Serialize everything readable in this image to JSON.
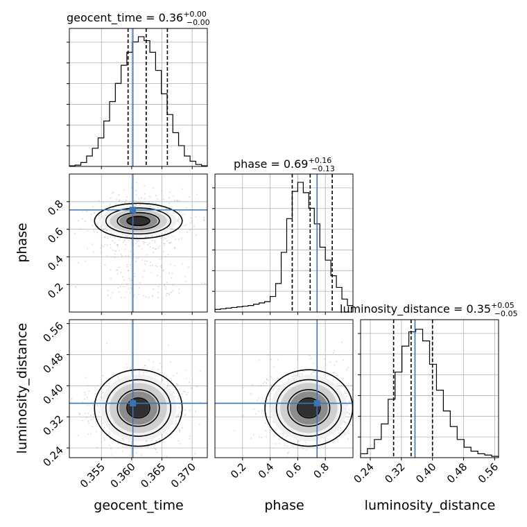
{
  "chart_data": {
    "type": "corner",
    "parameters": [
      "geocent_time",
      "phase",
      "luminosity_distance"
    ],
    "truth": {
      "geocent_time": 0.3602,
      "phase": 0.74,
      "luminosity_distance": 0.355
    },
    "colors": {
      "truth": "#3a74b3",
      "hist": "#000000",
      "points": "#9a9a9a"
    },
    "grid": true,
    "diagonal": [
      {
        "parameter": "geocent_time",
        "title_main": "geocent_time = 0.36",
        "title_sup": "+0.00",
        "title_sub": "−0.00",
        "xlim": [
          0.3497,
          0.3725
        ],
        "xticks": [
          0.355,
          0.36,
          0.365,
          0.37
        ],
        "xticklabels": [
          "0.355",
          "0.360",
          "0.365",
          "0.370"
        ],
        "quantiles": [
          0.3594,
          0.3624,
          0.3659
        ],
        "hist": [
          0.005,
          0.01,
          0.03,
          0.08,
          0.14,
          0.22,
          0.35,
          0.5,
          0.64,
          0.78,
          0.88,
          0.96,
          1.0,
          0.97,
          0.88,
          0.74,
          0.56,
          0.4,
          0.26,
          0.16,
          0.08,
          0.04,
          0.015,
          0.005
        ]
      },
      {
        "parameter": "phase",
        "title_main": "phase = 0.69",
        "title_sup": "+0.16",
        "title_sub": "−0.13",
        "xlim": [
          0.0,
          1.0
        ],
        "xticks": [
          0.2,
          0.4,
          0.6,
          0.8
        ],
        "xticklabels": [
          "0.2",
          "0.4",
          "0.6",
          "0.8"
        ],
        "quantiles": [
          0.56,
          0.69,
          0.85
        ],
        "hist": [
          0.02,
          0.025,
          0.03,
          0.035,
          0.04,
          0.045,
          0.05,
          0.06,
          0.07,
          0.08,
          0.12,
          0.22,
          0.46,
          0.72,
          0.93,
          1.0,
          0.92,
          0.8,
          0.68,
          0.5,
          0.4,
          0.28,
          0.19,
          0.1,
          0.05
        ]
      },
      {
        "parameter": "luminosity_distance",
        "title_main": "luminosity_distance = 0.35",
        "title_sup": "+0.05",
        "title_sub": "−0.05",
        "xlim": [
          0.215,
          0.57
        ],
        "xticks": [
          0.24,
          0.32,
          0.4,
          0.48,
          0.56
        ],
        "xticklabels": [
          "0.24",
          "0.32",
          "0.40",
          "0.48",
          "0.56"
        ],
        "quantiles": [
          0.3,
          0.345,
          0.4
        ],
        "hist": [
          0.03,
          0.07,
          0.14,
          0.26,
          0.45,
          0.66,
          0.86,
          0.97,
          0.99,
          0.9,
          0.72,
          0.52,
          0.36,
          0.24,
          0.14,
          0.08,
          0.05,
          0.03,
          0.02,
          0.01
        ]
      }
    ],
    "pairs": [
      {
        "x": "geocent_time",
        "y": "phase",
        "ylim": [
          0.0,
          1.0
        ],
        "yticks": [
          0.2,
          0.4,
          0.6,
          0.8
        ],
        "yticklabels": [
          "0.2",
          "0.4",
          "0.6",
          "0.8"
        ],
        "ylabel": "phase"
      },
      {
        "x": "geocent_time",
        "y": "luminosity_distance",
        "ylim": [
          0.215,
          0.57
        ],
        "yticks": [
          0.24,
          0.32,
          0.4,
          0.48,
          0.56
        ],
        "yticklabels": [
          "0.24",
          "0.32",
          "0.40",
          "0.48",
          "0.56"
        ],
        "ylabel": "luminosity_distance"
      },
      {
        "x": "phase",
        "y": "luminosity_distance",
        "ylim": [
          0.215,
          0.57
        ],
        "yticks": [
          0.24,
          0.32,
          0.4,
          0.48,
          0.56
        ],
        "yticklabels": [
          "0.24",
          "0.32",
          "0.40",
          "0.48",
          "0.56"
        ]
      }
    ],
    "xlabels": [
      "geocent_time",
      "phase",
      "luminosity_distance"
    ]
  }
}
